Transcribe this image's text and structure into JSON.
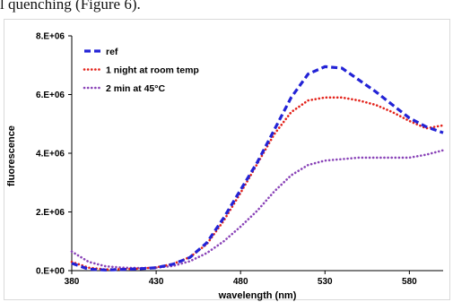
{
  "caption": {
    "text": "l quenching (Figure 6)."
  },
  "chart_data": {
    "type": "line",
    "xlabel": "wavelength (nm)",
    "ylabel": "fluorescence",
    "xlim": [
      380,
      600
    ],
    "ylim": [
      0,
      8000000
    ],
    "x_ticks": [
      380,
      430,
      480,
      530,
      580
    ],
    "y_ticks": [
      0,
      2000000,
      4000000,
      6000000,
      8000000
    ],
    "x_tick_labels": [
      "380",
      "430",
      "480",
      "530",
      "580"
    ],
    "y_tick_labels": [
      "0.E+00",
      "2.E+06",
      "4.E+06",
      "6.E+06",
      "8.E+06"
    ],
    "grid": false,
    "legend_position": "top-left",
    "x": [
      380,
      390,
      400,
      410,
      420,
      430,
      440,
      450,
      460,
      470,
      480,
      490,
      500,
      510,
      520,
      530,
      540,
      550,
      560,
      570,
      580,
      590,
      600
    ],
    "series": [
      {
        "name": "ref",
        "color": "#2323d6",
        "style": "dash",
        "values": [
          250000,
          50000,
          20000,
          40000,
          60000,
          100000,
          220000,
          450000,
          950000,
          1800000,
          2750000,
          3700000,
          4800000,
          5900000,
          6700000,
          6950000,
          6900000,
          6500000,
          6100000,
          5650000,
          5200000,
          4900000,
          4700000
        ]
      },
      {
        "name": "1 night at room temp",
        "color": "#e3231b",
        "style": "dot",
        "values": [
          300000,
          100000,
          40000,
          50000,
          70000,
          110000,
          230000,
          460000,
          900000,
          1700000,
          2650000,
          3650000,
          4650000,
          5400000,
          5800000,
          5900000,
          5900000,
          5800000,
          5650000,
          5400000,
          5100000,
          4850000,
          4950000
        ]
      },
      {
        "name": "2 min at 45°C",
        "color": "#8a44b8",
        "style": "dot",
        "values": [
          650000,
          300000,
          150000,
          100000,
          90000,
          100000,
          160000,
          320000,
          600000,
          1000000,
          1500000,
          2050000,
          2700000,
          3250000,
          3600000,
          3750000,
          3800000,
          3850000,
          3850000,
          3850000,
          3850000,
          3950000,
          4100000
        ]
      }
    ]
  }
}
